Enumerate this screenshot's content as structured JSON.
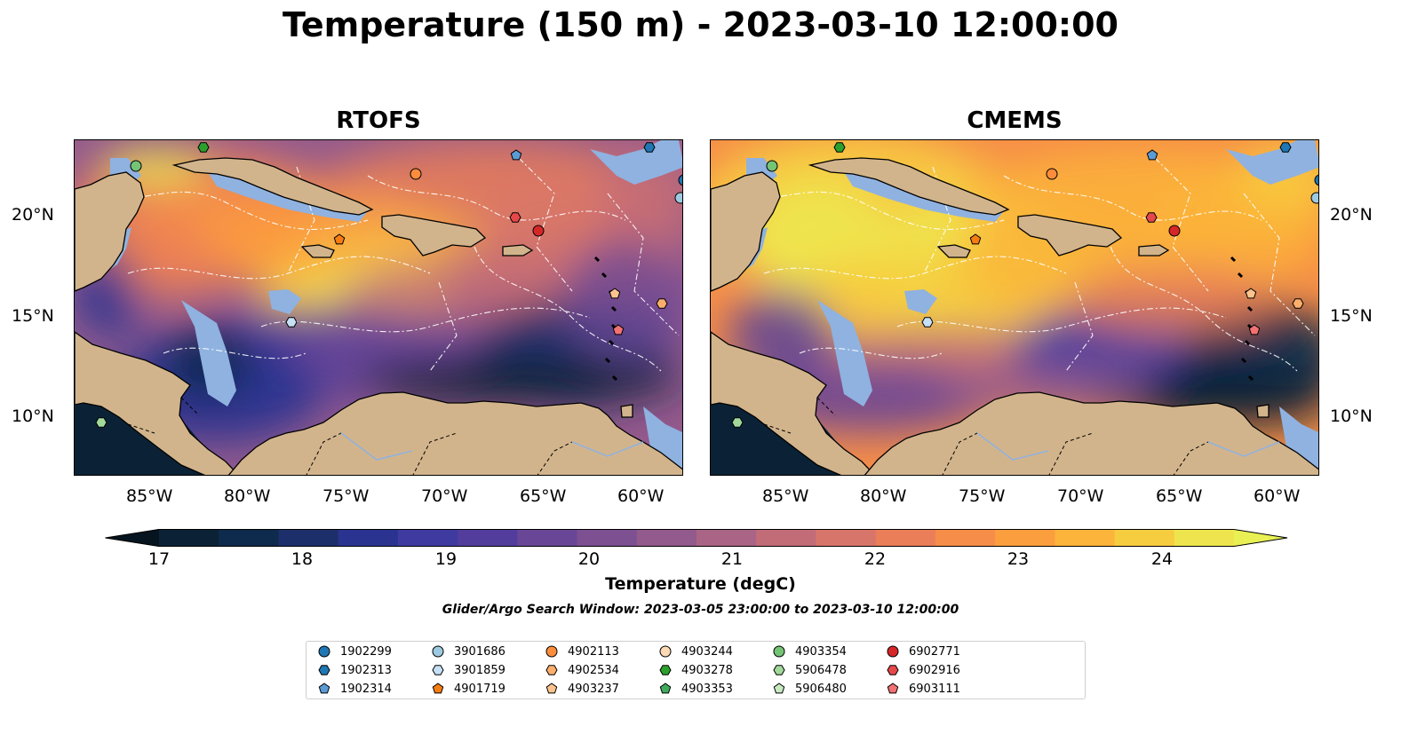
{
  "title": "Temperature (150 m) - 2023-03-10 12:00:00",
  "panels": [
    {
      "title": "RTOFS"
    },
    {
      "title": "CMEMS"
    }
  ],
  "x_ticks": [
    "85°W",
    "80°W",
    "75°W",
    "70°W",
    "65°W",
    "60°W"
  ],
  "y_ticks": [
    "20°N",
    "15°N",
    "10°N"
  ],
  "colorbar": {
    "label": "Temperature (degC)",
    "ticks": [
      "17",
      "18",
      "19",
      "20",
      "21",
      "22",
      "23",
      "24"
    ],
    "min": 17,
    "max": 24.5,
    "step": 0.5,
    "colors": [
      "#0b2236",
      "#0e2a4c",
      "#1d2f6b",
      "#2a3490",
      "#3f3aa0",
      "#523d9c",
      "#6a4796",
      "#7d5092",
      "#935a8d",
      "#aa6485",
      "#c26c78",
      "#d8756a",
      "#ea7e58",
      "#f68d48",
      "#fb9e3e",
      "#fcb43a",
      "#f7cd40",
      "#eee54e"
    ],
    "under_color": "#05141f",
    "over_color": "#e8f054"
  },
  "search_window_text": "Glider/Argo Search Window: 2023-03-05 23:00:00 to 2023-03-10 12:00:00",
  "legend": [
    {
      "id": "1902299",
      "shape": "circle",
      "color": "#1f77b4"
    },
    {
      "id": "1902313",
      "shape": "hexagon",
      "color": "#1f77b4"
    },
    {
      "id": "1902314",
      "shape": "pentagon",
      "color": "#5a9bd4"
    },
    {
      "id": "3901686",
      "shape": "circle",
      "color": "#9ecae1"
    },
    {
      "id": "3901859",
      "shape": "hexagon",
      "color": "#c6e0f5"
    },
    {
      "id": "4901719",
      "shape": "pentagon",
      "color": "#f57d12"
    },
    {
      "id": "4902113",
      "shape": "circle",
      "color": "#fd8d3c"
    },
    {
      "id": "4902534",
      "shape": "hexagon",
      "color": "#fdae6b"
    },
    {
      "id": "4903237",
      "shape": "pentagon",
      "color": "#fdc38d"
    },
    {
      "id": "4903244",
      "shape": "circle",
      "color": "#fdd9b5"
    },
    {
      "id": "4903278",
      "shape": "hexagon",
      "color": "#2ca02c"
    },
    {
      "id": "4903353",
      "shape": "pentagon",
      "color": "#41ab5d"
    },
    {
      "id": "4903354",
      "shape": "circle",
      "color": "#74c476"
    },
    {
      "id": "5906478",
      "shape": "hexagon",
      "color": "#a1d99b"
    },
    {
      "id": "5906480",
      "shape": "pentagon",
      "color": "#c7e9c0"
    },
    {
      "id": "6902771",
      "shape": "circle",
      "color": "#d62728"
    },
    {
      "id": "6902916",
      "shape": "hexagon",
      "color": "#e6484a"
    },
    {
      "id": "6903111",
      "shape": "pentagon",
      "color": "#f27173"
    }
  ],
  "colors": {
    "land": "#d2b48c",
    "shallow": "#8fb2e0"
  }
}
